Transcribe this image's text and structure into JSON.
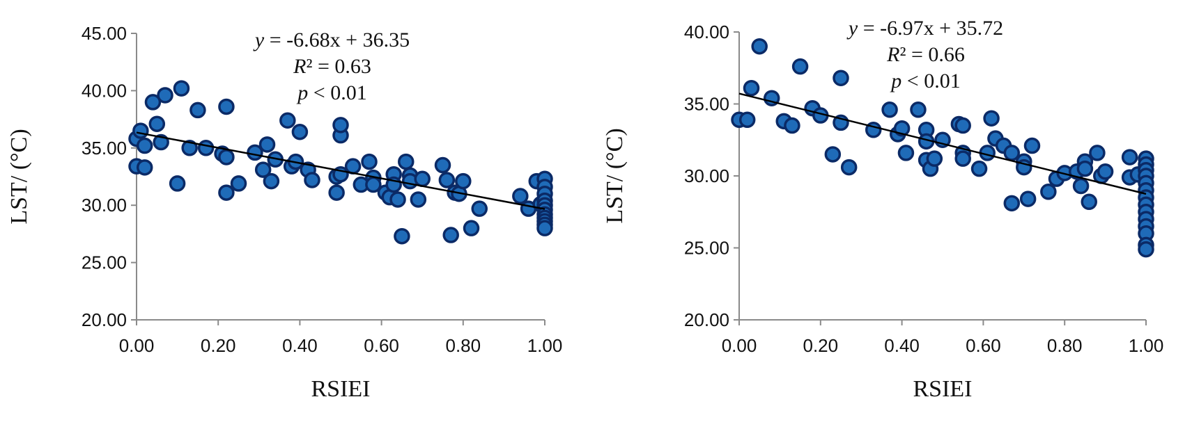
{
  "chart_data": [
    {
      "type": "scatter",
      "xlabel": "RSIEI",
      "ylabel": "LST/ (°C)",
      "xlim": [
        0,
        1
      ],
      "ylim": [
        20,
        45
      ],
      "x_ticks": [
        "0.00",
        "0.20",
        "0.40",
        "0.60",
        "0.80",
        "1.00"
      ],
      "y_ticks": [
        "20.00",
        "25.00",
        "30.00",
        "35.00",
        "40.00",
        "45.00"
      ],
      "annotation": {
        "equation": "y = -6.68x + 36.35",
        "r2": "R² = 0.63",
        "p": "p < 0.01"
      },
      "fit": {
        "slope": -6.68,
        "intercept": 36.35
      },
      "points": [
        [
          0.0,
          33.4
        ],
        [
          0.0,
          35.8
        ],
        [
          0.01,
          36.5
        ],
        [
          0.02,
          33.3
        ],
        [
          0.02,
          35.2
        ],
        [
          0.04,
          39.0
        ],
        [
          0.05,
          37.1
        ],
        [
          0.06,
          35.5
        ],
        [
          0.07,
          39.6
        ],
        [
          0.1,
          31.9
        ],
        [
          0.11,
          40.2
        ],
        [
          0.13,
          35.0
        ],
        [
          0.15,
          38.3
        ],
        [
          0.17,
          35.0
        ],
        [
          0.21,
          34.5
        ],
        [
          0.22,
          31.1
        ],
        [
          0.22,
          34.2
        ],
        [
          0.22,
          38.6
        ],
        [
          0.25,
          31.9
        ],
        [
          0.29,
          34.6
        ],
        [
          0.31,
          33.1
        ],
        [
          0.32,
          35.3
        ],
        [
          0.33,
          32.1
        ],
        [
          0.34,
          34.0
        ],
        [
          0.37,
          37.4
        ],
        [
          0.38,
          33.4
        ],
        [
          0.39,
          33.8
        ],
        [
          0.4,
          36.4
        ],
        [
          0.42,
          33.1
        ],
        [
          0.43,
          32.2
        ],
        [
          0.49,
          32.5
        ],
        [
          0.49,
          31.1
        ],
        [
          0.5,
          36.1
        ],
        [
          0.5,
          37.0
        ],
        [
          0.5,
          32.7
        ],
        [
          0.53,
          33.4
        ],
        [
          0.55,
          31.8
        ],
        [
          0.57,
          33.8
        ],
        [
          0.58,
          32.4
        ],
        [
          0.58,
          31.8
        ],
        [
          0.61,
          31.1
        ],
        [
          0.62,
          30.7
        ],
        [
          0.63,
          32.7
        ],
        [
          0.63,
          31.8
        ],
        [
          0.64,
          30.5
        ],
        [
          0.65,
          27.3
        ],
        [
          0.66,
          33.8
        ],
        [
          0.67,
          32.6
        ],
        [
          0.67,
          32.1
        ],
        [
          0.69,
          30.5
        ],
        [
          0.7,
          32.3
        ],
        [
          0.75,
          33.5
        ],
        [
          0.76,
          32.2
        ],
        [
          0.77,
          27.4
        ],
        [
          0.78,
          31.1
        ],
        [
          0.79,
          31.0
        ],
        [
          0.8,
          32.1
        ],
        [
          0.82,
          28.0
        ],
        [
          0.84,
          29.7
        ],
        [
          0.94,
          30.8
        ],
        [
          0.96,
          29.7
        ],
        [
          0.98,
          32.1
        ],
        [
          0.99,
          30.1
        ],
        [
          1.0,
          32.3
        ],
        [
          1.0,
          31.6
        ],
        [
          1.0,
          31.0
        ],
        [
          1.0,
          30.4
        ],
        [
          1.0,
          30.0
        ],
        [
          1.0,
          29.6
        ],
        [
          1.0,
          29.2
        ],
        [
          1.0,
          28.9
        ],
        [
          1.0,
          28.6
        ],
        [
          1.0,
          28.3
        ],
        [
          1.0,
          28.0
        ]
      ]
    },
    {
      "type": "scatter",
      "xlabel": "RSIEI",
      "ylabel": "LST/ (°C)",
      "xlim": [
        0,
        1
      ],
      "ylim": [
        20,
        40
      ],
      "x_ticks": [
        "0.00",
        "0.20",
        "0.40",
        "0.60",
        "0.80",
        "1.00"
      ],
      "y_ticks": [
        "20.00",
        "25.00",
        "30.00",
        "35.00",
        "40.00"
      ],
      "annotation": {
        "equation": "y = -6.97x + 35.72",
        "r2": "R² = 0.66",
        "p": "p < 0.01"
      },
      "fit": {
        "slope": -6.97,
        "intercept": 35.72
      },
      "points": [
        [
          0.0,
          33.9
        ],
        [
          0.02,
          33.9
        ],
        [
          0.03,
          36.1
        ],
        [
          0.05,
          39.0
        ],
        [
          0.08,
          35.4
        ],
        [
          0.11,
          33.8
        ],
        [
          0.13,
          33.5
        ],
        [
          0.15,
          37.6
        ],
        [
          0.18,
          34.7
        ],
        [
          0.2,
          34.2
        ],
        [
          0.23,
          31.5
        ],
        [
          0.25,
          36.8
        ],
        [
          0.25,
          33.7
        ],
        [
          0.27,
          30.6
        ],
        [
          0.33,
          33.2
        ],
        [
          0.37,
          34.6
        ],
        [
          0.39,
          32.9
        ],
        [
          0.4,
          33.3
        ],
        [
          0.41,
          31.6
        ],
        [
          0.44,
          34.6
        ],
        [
          0.46,
          33.2
        ],
        [
          0.46,
          32.4
        ],
        [
          0.46,
          31.1
        ],
        [
          0.47,
          30.5
        ],
        [
          0.48,
          31.2
        ],
        [
          0.5,
          32.5
        ],
        [
          0.54,
          33.6
        ],
        [
          0.55,
          33.5
        ],
        [
          0.55,
          31.6
        ],
        [
          0.55,
          31.2
        ],
        [
          0.59,
          30.5
        ],
        [
          0.61,
          31.6
        ],
        [
          0.62,
          34.0
        ],
        [
          0.63,
          32.6
        ],
        [
          0.65,
          32.1
        ],
        [
          0.67,
          31.6
        ],
        [
          0.67,
          28.1
        ],
        [
          0.7,
          31.0
        ],
        [
          0.7,
          30.6
        ],
        [
          0.71,
          28.4
        ],
        [
          0.72,
          32.1
        ],
        [
          0.76,
          28.9
        ],
        [
          0.78,
          29.8
        ],
        [
          0.8,
          30.2
        ],
        [
          0.83,
          30.3
        ],
        [
          0.84,
          29.3
        ],
        [
          0.85,
          31.0
        ],
        [
          0.85,
          30.5
        ],
        [
          0.86,
          28.2
        ],
        [
          0.88,
          31.6
        ],
        [
          0.89,
          30.0
        ],
        [
          0.9,
          30.3
        ],
        [
          0.96,
          31.3
        ],
        [
          0.96,
          29.9
        ],
        [
          0.98,
          30.1
        ],
        [
          1.0,
          31.2
        ],
        [
          1.0,
          30.8
        ],
        [
          1.0,
          30.4
        ],
        [
          1.0,
          30.0
        ],
        [
          1.0,
          29.5
        ],
        [
          1.0,
          29.0
        ],
        [
          1.0,
          28.5
        ],
        [
          1.0,
          28.0
        ],
        [
          1.0,
          27.5
        ],
        [
          1.0,
          27.0
        ],
        [
          1.0,
          26.5
        ],
        [
          1.0,
          26.0
        ],
        [
          1.0,
          25.2
        ],
        [
          1.0,
          24.9
        ]
      ]
    }
  ]
}
